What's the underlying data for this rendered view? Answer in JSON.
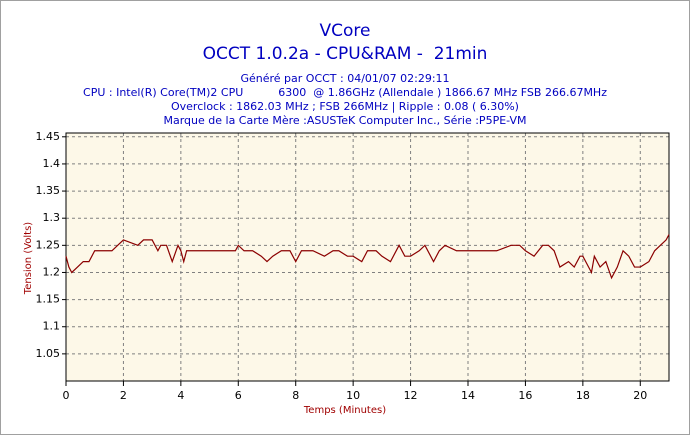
{
  "chart_data": {
    "type": "line",
    "title": "VCore",
    "subtitle": "OCCT 1.0.2a - CPU&RAM -  21min",
    "info_lines": [
      "Généré par OCCT : 04/01/07 02:29:11",
      "CPU : Intel(R) Core(TM)2 CPU          6300  @ 1.86GHz (Allendale ) 1866.67 MHz FSB 266.67MHz",
      "Overclock : 1862.03 MHz ; FSB 266MHz | Ripple : 0.08 ( 6.30%)",
      "Marque de la Carte Mère :ASUSTeK Computer Inc., Série :P5PE-VM"
    ],
    "x_label": "Temps (Minutes)",
    "y_label": "Tension (Volts)",
    "xlim": [
      0,
      21
    ],
    "ylim": [
      1.0,
      1.457
    ],
    "xticks": [
      0,
      2,
      4,
      6,
      8,
      10,
      12,
      14,
      16,
      18,
      20
    ],
    "yticks": [
      1.05,
      1.1,
      1.15,
      1.2,
      1.25,
      1.3,
      1.35,
      1.4,
      1.45
    ],
    "grid": true,
    "background": "#fdf8e8",
    "x": [
      0,
      0.1,
      0.2,
      0.4,
      0.6,
      0.8,
      1.0,
      1.3,
      1.6,
      1.8,
      2.0,
      2.5,
      2.7,
      3.0,
      3.2,
      3.3,
      3.5,
      3.7,
      3.9,
      4.0,
      4.1,
      4.2,
      4.5,
      5.0,
      5.5,
      5.9,
      6.0,
      6.2,
      6.5,
      6.8,
      7.0,
      7.2,
      7.5,
      7.8,
      8.0,
      8.2,
      8.6,
      9.0,
      9.3,
      9.5,
      9.8,
      10.0,
      10.3,
      10.5,
      10.8,
      11.0,
      11.3,
      11.6,
      11.8,
      12.0,
      12.3,
      12.5,
      12.8,
      13.0,
      13.2,
      13.6,
      14.0,
      14.5,
      15.0,
      15.5,
      15.8,
      16.0,
      16.3,
      16.6,
      16.8,
      17.0,
      17.2,
      17.5,
      17.7,
      17.9,
      18.0,
      18.3,
      18.4,
      18.6,
      18.8,
      19.0,
      19.2,
      19.4,
      19.6,
      19.8,
      20.0,
      20.3,
      20.5,
      20.7,
      20.9,
      21.0
    ],
    "series": [
      {
        "name": "VCore",
        "color": "#8b0000",
        "values": [
          1.23,
          1.21,
          1.2,
          1.21,
          1.22,
          1.22,
          1.24,
          1.24,
          1.24,
          1.25,
          1.26,
          1.25,
          1.26,
          1.26,
          1.24,
          1.25,
          1.25,
          1.22,
          1.25,
          1.24,
          1.22,
          1.24,
          1.24,
          1.24,
          1.24,
          1.24,
          1.25,
          1.24,
          1.24,
          1.23,
          1.22,
          1.23,
          1.24,
          1.24,
          1.22,
          1.24,
          1.24,
          1.23,
          1.24,
          1.24,
          1.23,
          1.23,
          1.22,
          1.24,
          1.24,
          1.23,
          1.22,
          1.25,
          1.23,
          1.23,
          1.24,
          1.25,
          1.22,
          1.24,
          1.25,
          1.24,
          1.24,
          1.24,
          1.24,
          1.25,
          1.25,
          1.24,
          1.23,
          1.25,
          1.25,
          1.24,
          1.21,
          1.22,
          1.21,
          1.23,
          1.23,
          1.2,
          1.23,
          1.21,
          1.22,
          1.19,
          1.21,
          1.24,
          1.23,
          1.21,
          1.21,
          1.22,
          1.24,
          1.25,
          1.26,
          1.27
        ]
      }
    ]
  }
}
